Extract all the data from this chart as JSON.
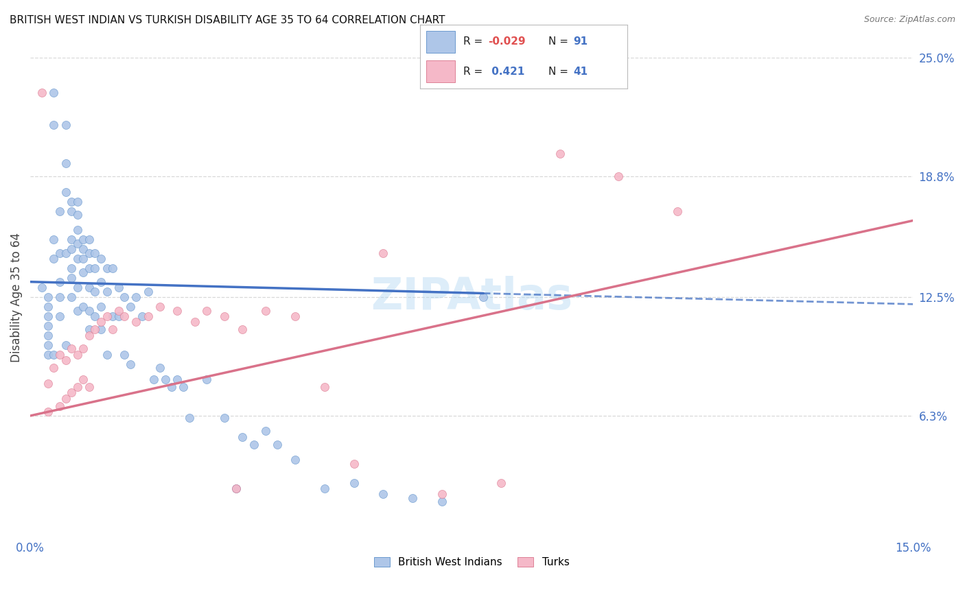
{
  "title": "BRITISH WEST INDIAN VS TURKISH DISABILITY AGE 35 TO 64 CORRELATION CHART",
  "source": "Source: ZipAtlas.com",
  "ylabel": "Disability Age 35 to 64",
  "x_min": 0.0,
  "x_max": 0.15,
  "y_min": 0.0,
  "y_max": 0.25,
  "x_tick_positions": [
    0.0,
    0.03,
    0.06,
    0.09,
    0.12,
    0.15
  ],
  "x_tick_labels": [
    "0.0%",
    "",
    "",
    "",
    "",
    "15.0%"
  ],
  "y_ticks_right": [
    0.063,
    0.125,
    0.188,
    0.25
  ],
  "y_tick_labels_right": [
    "6.3%",
    "12.5%",
    "18.8%",
    "25.0%"
  ],
  "watermark": "ZIPAtlas",
  "blue_fill_color": "#aec6e8",
  "blue_edge_color": "#5b8fc9",
  "pink_fill_color": "#f5b8c8",
  "pink_edge_color": "#d9728a",
  "blue_line_color": "#4472c4",
  "pink_line_color": "#d9728a",
  "legend_r_blue": "-0.029",
  "legend_n_blue": "91",
  "legend_r_pink": "0.421",
  "legend_n_pink": "41",
  "background_color": "#ffffff",
  "grid_color": "#d8d8d8",
  "blue_x": [
    0.002,
    0.003,
    0.003,
    0.003,
    0.003,
    0.003,
    0.003,
    0.003,
    0.004,
    0.004,
    0.004,
    0.004,
    0.004,
    0.005,
    0.005,
    0.005,
    0.005,
    0.005,
    0.006,
    0.006,
    0.006,
    0.006,
    0.006,
    0.007,
    0.007,
    0.007,
    0.007,
    0.007,
    0.007,
    0.007,
    0.008,
    0.008,
    0.008,
    0.008,
    0.008,
    0.008,
    0.008,
    0.009,
    0.009,
    0.009,
    0.009,
    0.009,
    0.01,
    0.01,
    0.01,
    0.01,
    0.01,
    0.01,
    0.011,
    0.011,
    0.011,
    0.011,
    0.012,
    0.012,
    0.012,
    0.012,
    0.013,
    0.013,
    0.013,
    0.014,
    0.014,
    0.015,
    0.015,
    0.016,
    0.016,
    0.017,
    0.017,
    0.018,
    0.019,
    0.02,
    0.021,
    0.022,
    0.023,
    0.024,
    0.025,
    0.026,
    0.027,
    0.03,
    0.033,
    0.036,
    0.038,
    0.04,
    0.042,
    0.045,
    0.05,
    0.055,
    0.06,
    0.065,
    0.07,
    0.077,
    0.035
  ],
  "blue_y": [
    0.13,
    0.125,
    0.12,
    0.115,
    0.11,
    0.105,
    0.1,
    0.095,
    0.232,
    0.215,
    0.155,
    0.145,
    0.095,
    0.17,
    0.148,
    0.133,
    0.125,
    0.115,
    0.215,
    0.195,
    0.18,
    0.148,
    0.1,
    0.175,
    0.17,
    0.155,
    0.15,
    0.14,
    0.135,
    0.125,
    0.175,
    0.168,
    0.16,
    0.153,
    0.145,
    0.13,
    0.118,
    0.155,
    0.15,
    0.145,
    0.138,
    0.12,
    0.155,
    0.148,
    0.14,
    0.13,
    0.118,
    0.108,
    0.148,
    0.14,
    0.128,
    0.115,
    0.145,
    0.133,
    0.12,
    0.108,
    0.14,
    0.128,
    0.095,
    0.14,
    0.115,
    0.13,
    0.115,
    0.125,
    0.095,
    0.12,
    0.09,
    0.125,
    0.115,
    0.128,
    0.082,
    0.088,
    0.082,
    0.078,
    0.082,
    0.078,
    0.062,
    0.082,
    0.062,
    0.052,
    0.048,
    0.055,
    0.048,
    0.04,
    0.025,
    0.028,
    0.022,
    0.02,
    0.018,
    0.125,
    0.025
  ],
  "pink_x": [
    0.002,
    0.003,
    0.003,
    0.004,
    0.005,
    0.005,
    0.006,
    0.006,
    0.007,
    0.007,
    0.008,
    0.008,
    0.009,
    0.009,
    0.01,
    0.01,
    0.011,
    0.012,
    0.013,
    0.014,
    0.015,
    0.016,
    0.018,
    0.02,
    0.022,
    0.025,
    0.028,
    0.03,
    0.033,
    0.036,
    0.04,
    0.045,
    0.05,
    0.06,
    0.07,
    0.08,
    0.09,
    0.1,
    0.11,
    0.035,
    0.055
  ],
  "pink_y": [
    0.232,
    0.08,
    0.065,
    0.088,
    0.095,
    0.068,
    0.092,
    0.072,
    0.098,
    0.075,
    0.095,
    0.078,
    0.098,
    0.082,
    0.105,
    0.078,
    0.108,
    0.112,
    0.115,
    0.108,
    0.118,
    0.115,
    0.112,
    0.115,
    0.12,
    0.118,
    0.112,
    0.118,
    0.115,
    0.108,
    0.118,
    0.115,
    0.078,
    0.148,
    0.022,
    0.028,
    0.2,
    0.188,
    0.17,
    0.025,
    0.038
  ]
}
